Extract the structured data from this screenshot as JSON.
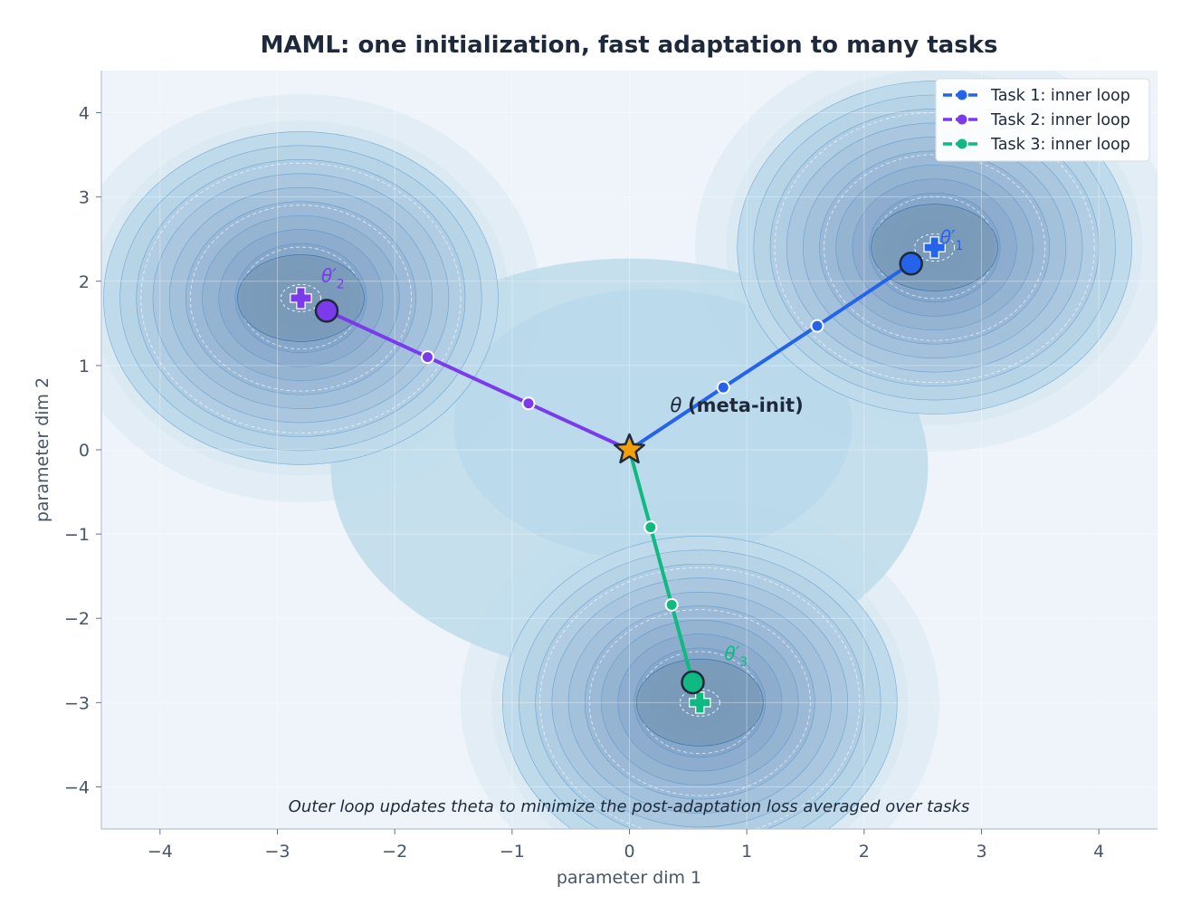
{
  "chart_data": {
    "type": "contour",
    "title": "MAML: one initialization, fast adaptation to many tasks",
    "xlabel": "parameter dim 1",
    "ylabel": "parameter dim 2",
    "xlim": [
      -4.5,
      4.5
    ],
    "ylim": [
      -4.5,
      4.5
    ],
    "xticks": [
      -4,
      -3,
      -2,
      -1,
      0,
      1,
      2,
      3,
      4
    ],
    "yticks": [
      -4,
      -3,
      -2,
      -1,
      0,
      1,
      2,
      3,
      4
    ],
    "xticklabels": [
      "−4",
      "−3",
      "−2",
      "−1",
      "0",
      "1",
      "2",
      "3",
      "4"
    ],
    "yticklabels": [
      "−4",
      "−3",
      "−2",
      "−1",
      "0",
      "1",
      "2",
      "3",
      "4"
    ],
    "grid": true,
    "legend_position": "top-right",
    "colors": {
      "task1": "#2563eb",
      "task2": "#7c3aed",
      "task3": "#10b981",
      "meta_init": "#f59e0b",
      "text_dark": "#1e293b",
      "axis_text": "#475569"
    },
    "meta_init": {
      "x": 0.0,
      "y": 0.0,
      "label_symbol": "θ",
      "label_text": "(meta-init)",
      "marker": "star"
    },
    "tasks": [
      {
        "name": "Task 1: inner loop",
        "color": "#2563eb",
        "path": [
          [
            0,
            0
          ],
          [
            0.8,
            0.74
          ],
          [
            1.6,
            1.47
          ],
          [
            2.4,
            2.21
          ]
        ],
        "optimum": [
          2.6,
          2.4
        ],
        "adapted_label": "θ′",
        "adapted_sub": "1"
      },
      {
        "name": "Task 2: inner loop",
        "color": "#7c3aed",
        "path": [
          [
            0,
            0
          ],
          [
            -0.86,
            0.55
          ],
          [
            -1.72,
            1.1
          ],
          [
            -2.58,
            1.65
          ]
        ],
        "optimum": [
          -2.8,
          1.8
        ],
        "adapted_label": "θ′",
        "adapted_sub": "2"
      },
      {
        "name": "Task 3: inner loop",
        "color": "#10b981",
        "path": [
          [
            0,
            0
          ],
          [
            0.18,
            -0.92
          ],
          [
            0.36,
            -1.84
          ],
          [
            0.54,
            -2.76
          ]
        ],
        "optimum": [
          0.6,
          -3.0
        ],
        "adapted_label": "θ′",
        "adapted_sub": "3"
      }
    ],
    "annotation": "Outer loop updates  theta  to minimize the post-adaptation loss averaged over tasks"
  }
}
